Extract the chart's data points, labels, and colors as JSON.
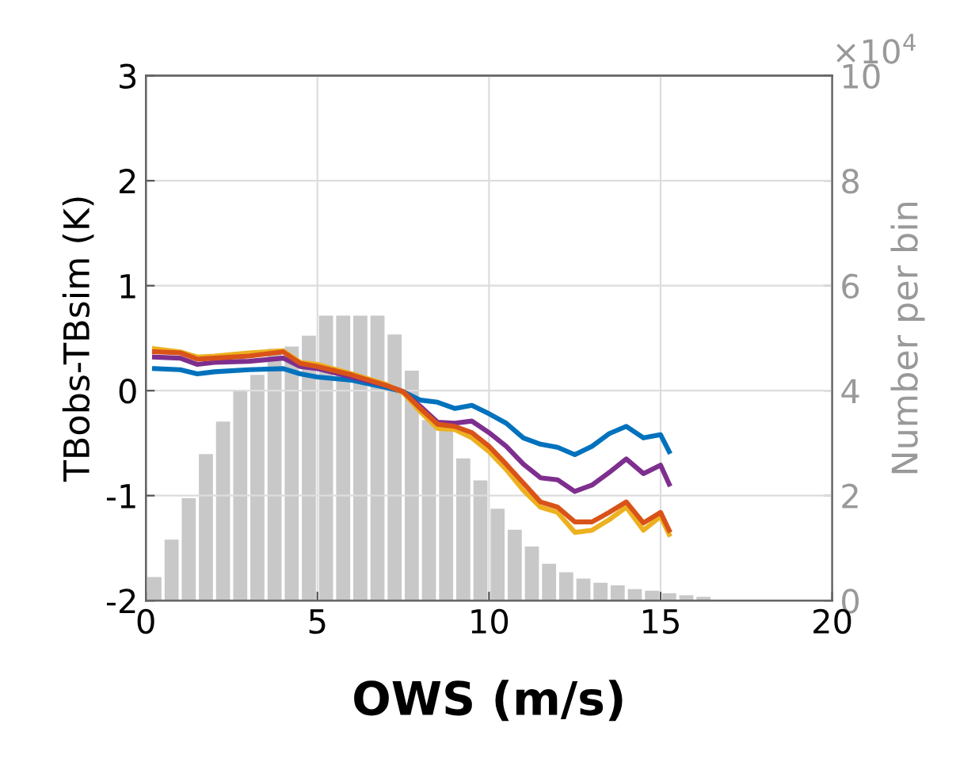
{
  "chart_data": {
    "type": "line",
    "xlabel": "OWS (m/s)",
    "ylabel": "TBobs-TBsim (K)",
    "y2label": "Number per bin",
    "annotations": [
      "×10$^{4}$"
    ],
    "xlim": [
      0,
      20
    ],
    "xticks": [
      0,
      5,
      10,
      15,
      20
    ],
    "ylim": [
      -2,
      3
    ],
    "yticks": [
      -2,
      -1,
      0,
      1,
      2,
      3
    ],
    "y2lim": [
      0,
      10
    ],
    "y2ticks": [
      0,
      2,
      4,
      6,
      8,
      10
    ],
    "grid": true,
    "series": [
      {
        "type": "histogram",
        "axis": "y2",
        "color": "#c8c8c8",
        "bins": [
          0,
          0.5,
          1,
          1.5,
          2,
          2.5,
          3,
          3.5,
          4,
          4.5,
          5,
          5.5,
          6,
          6.5,
          7,
          7.5,
          8,
          8.5,
          9,
          9.5,
          10,
          10.5,
          11,
          11.5,
          12,
          12.5,
          13,
          13.5,
          14,
          14.5,
          15,
          15.5,
          16,
          16.5,
          17,
          17.5,
          18,
          18.5,
          19,
          19.5,
          20
        ],
        "values": [
          0.45,
          1.16,
          1.95,
          2.79,
          3.41,
          4.0,
          4.3,
          4.8,
          4.84,
          5.05,
          5.43,
          5.43,
          5.43,
          5.43,
          5.07,
          4.38,
          3.44,
          3.24,
          2.71,
          2.29,
          1.75,
          1.35,
          1.03,
          0.7,
          0.54,
          0.42,
          0.34,
          0.29,
          0.22,
          0.19,
          0.14,
          0.1,
          0.07,
          null,
          null,
          null,
          null,
          null,
          null,
          null
        ]
      },
      {
        "color": "#0072bd",
        "x": [
          0.25,
          1,
          1.5,
          2,
          3,
          4,
          4.5,
          5,
          6,
          7,
          7.5,
          8,
          8.5,
          9,
          9.5,
          10,
          10.5,
          11,
          11.5,
          12,
          12.5,
          13,
          13.5,
          14,
          14.5,
          15,
          15.25
        ],
        "values": [
          0.21,
          0.2,
          0.16,
          0.18,
          0.2,
          0.21,
          0.16,
          0.13,
          0.1,
          0.03,
          -0.01,
          -0.09,
          -0.11,
          -0.17,
          -0.14,
          -0.22,
          -0.31,
          -0.45,
          -0.51,
          -0.54,
          -0.61,
          -0.53,
          -0.41,
          -0.34,
          -0.45,
          -0.42,
          -0.58
        ]
      },
      {
        "color": "#7e2f8e",
        "x": [
          0.25,
          1,
          1.5,
          2,
          3,
          4,
          4.5,
          5,
          6,
          7,
          7.5,
          8,
          8.5,
          9,
          9.5,
          10,
          10.5,
          11,
          11.5,
          12,
          12.5,
          13,
          13.5,
          14,
          14.5,
          15,
          15.25
        ],
        "values": [
          0.32,
          0.31,
          0.25,
          0.27,
          0.28,
          0.31,
          0.23,
          0.21,
          0.13,
          0.05,
          -0.01,
          -0.15,
          -0.3,
          -0.31,
          -0.29,
          -0.4,
          -0.53,
          -0.7,
          -0.83,
          -0.85,
          -0.96,
          -0.9,
          -0.78,
          -0.65,
          -0.79,
          -0.71,
          -0.89
        ]
      },
      {
        "color": "#edb120",
        "x": [
          0.25,
          1,
          1.5,
          2,
          3,
          4,
          4.5,
          5,
          6,
          7,
          7.5,
          8,
          8.5,
          9,
          9.5,
          10,
          10.5,
          11,
          11.5,
          12,
          12.5,
          13,
          13.5,
          14,
          14.5,
          15,
          15.25
        ],
        "values": [
          0.4,
          0.37,
          0.32,
          0.33,
          0.36,
          0.38,
          0.27,
          0.25,
          0.16,
          0.06,
          -0.02,
          -0.2,
          -0.36,
          -0.37,
          -0.45,
          -0.58,
          -0.75,
          -0.95,
          -1.11,
          -1.16,
          -1.35,
          -1.33,
          -1.23,
          -1.11,
          -1.33,
          -1.2,
          -1.37
        ]
      },
      {
        "color": "#d95319",
        "x": [
          0.25,
          1,
          1.5,
          2,
          3,
          4,
          4.5,
          5,
          6,
          7,
          7.5,
          8,
          8.5,
          9,
          9.5,
          10,
          10.5,
          11,
          11.5,
          12,
          12.5,
          13,
          13.5,
          14,
          14.5,
          15,
          15.25
        ],
        "values": [
          0.37,
          0.36,
          0.3,
          0.31,
          0.33,
          0.37,
          0.26,
          0.23,
          0.15,
          0.05,
          -0.01,
          -0.17,
          -0.32,
          -0.34,
          -0.4,
          -0.53,
          -0.7,
          -0.88,
          -1.06,
          -1.11,
          -1.25,
          -1.25,
          -1.16,
          -1.06,
          -1.26,
          -1.16,
          -1.33
        ]
      }
    ]
  }
}
